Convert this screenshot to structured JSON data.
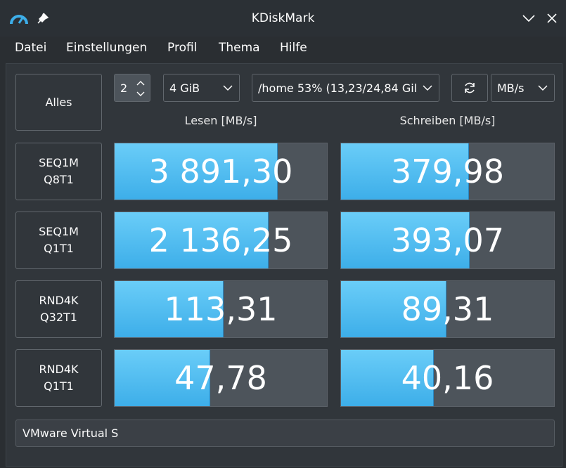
{
  "window": {
    "title": "KDiskMark"
  },
  "menu": [
    "Datei",
    "Einstellungen",
    "Profil",
    "Thema",
    "Hilfe"
  ],
  "controls": {
    "all_button": "Alles",
    "runs": 2,
    "size": "4 GiB",
    "target": "/home 53% (13,23/24,84 Gil",
    "unit": "MB/s"
  },
  "headers": {
    "read": "Lesen [MB/s]",
    "write": "Schreiben [MB/s]"
  },
  "tests": [
    {
      "name": [
        "SEQ1M",
        "Q8T1"
      ],
      "read": {
        "value": 3891.3,
        "label": "3 891,30"
      },
      "write": {
        "value": 379.98,
        "label": "379,98"
      }
    },
    {
      "name": [
        "SEQ1M",
        "Q1T1"
      ],
      "read": {
        "value": 2136.25,
        "label": "2 136,25"
      },
      "write": {
        "value": 393.07,
        "label": "393,07"
      }
    },
    {
      "name": [
        "RND4K",
        "Q32T1"
      ],
      "read": {
        "value": 113.31,
        "label": "113,31"
      },
      "write": {
        "value": 89.31,
        "label": "89,31"
      }
    },
    {
      "name": [
        "RND4K",
        "Q1T1"
      ],
      "read": {
        "value": 47.78,
        "label": "47,78"
      },
      "write": {
        "value": 40.16,
        "label": "40,16"
      }
    }
  ],
  "device": "VMware Virtual S"
}
